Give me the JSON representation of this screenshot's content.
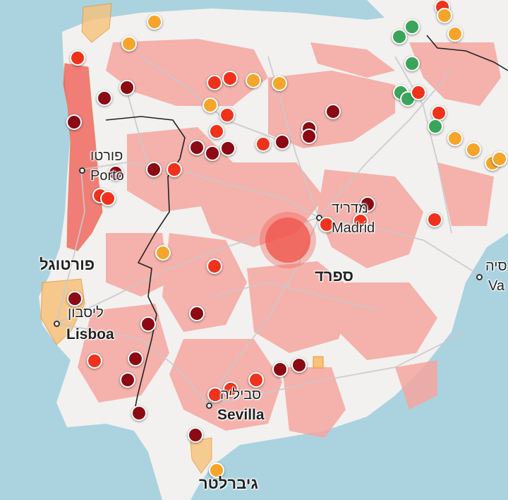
{
  "labels": {
    "portugal_he": "פורטוגל",
    "spain_he": "ספרד",
    "porto_he": "פורטו",
    "porto": "Porto",
    "lisbon_he": "ליסבון",
    "lisbon": "Lisboa",
    "madrid_he": "מדריד",
    "madrid": "Madrid",
    "sevilla_he": "סביליה",
    "sevilla": "Sevilla",
    "gibraltar_he": "גיברלטר",
    "valencia_he": "סיה",
    "valencia": "Va"
  },
  "colors": {
    "sea": "#aad3df",
    "land": "#f2f1ef",
    "risk_area": "#f6a6a0",
    "highlight_zone": "#f0574e",
    "dark_red": "#8b0a14",
    "red": "#f0321c",
    "orange": "#f5a52a",
    "green": "#3aa55a"
  },
  "marker_levels": [
    "dark_red",
    "red",
    "orange",
    "green"
  ]
}
